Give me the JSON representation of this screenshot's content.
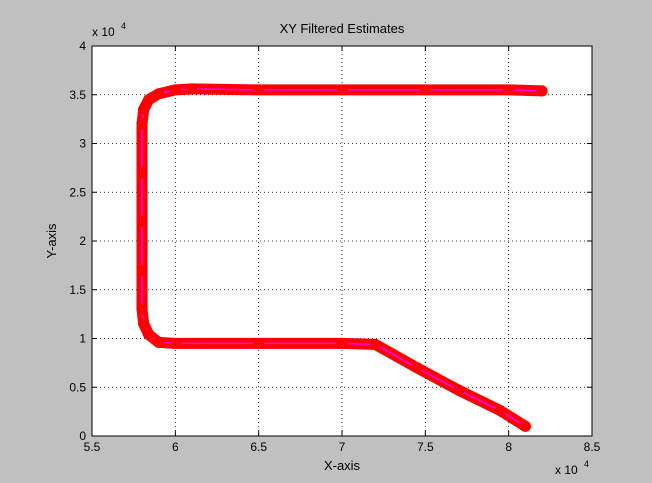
{
  "chart_data": {
    "type": "line",
    "title": "XY Filtered Estimates",
    "xlabel": "X-axis",
    "ylabel": "Y-axis",
    "x_exponent_label": "x 10",
    "x_exponent_power": "4",
    "y_exponent_label": "x 10",
    "y_exponent_power": "4",
    "xlim": [
      55000,
      85000
    ],
    "ylim": [
      0,
      40000
    ],
    "x_ticks": [
      55000,
      60000,
      65000,
      70000,
      75000,
      80000,
      85000
    ],
    "x_tick_labels": [
      "5.5",
      "6",
      "6.5",
      "7",
      "7.5",
      "8",
      "8.5"
    ],
    "y_ticks": [
      0,
      5000,
      10000,
      15000,
      20000,
      25000,
      30000,
      35000,
      40000
    ],
    "y_tick_labels": [
      "0",
      "0.5",
      "1",
      "1.5",
      "2",
      "2.5",
      "3",
      "3.5",
      "4"
    ],
    "grid": true,
    "series": [
      {
        "color": "#ff0000",
        "inner_color": "#ff00ff",
        "x": [
          81000,
          79500,
          77000,
          74500,
          72000,
          70000,
          65000,
          60000,
          59000,
          58400,
          58100,
          58000,
          58000,
          58000,
          58000,
          58000,
          58100,
          58400,
          59000,
          60000,
          61000,
          65000,
          70000,
          75000,
          80000,
          82000
        ],
        "y": [
          1000,
          2600,
          4700,
          7000,
          9400,
          9500,
          9500,
          9500,
          9600,
          10400,
          11500,
          13000,
          17000,
          22000,
          27000,
          32000,
          33500,
          34500,
          35100,
          35500,
          35600,
          35500,
          35500,
          35500,
          35500,
          35400
        ]
      }
    ]
  }
}
